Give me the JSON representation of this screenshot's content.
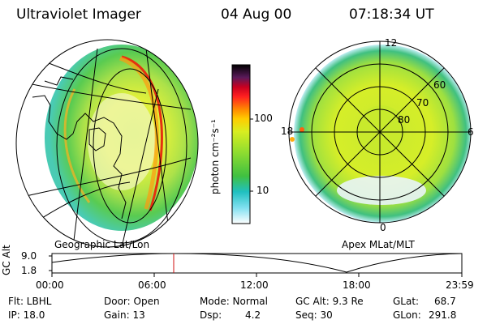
{
  "header": {
    "instrument": "Ultraviolet Imager",
    "date": "04 Aug 00",
    "time": "07:18:34 UT"
  },
  "panels": {
    "geo_label": "Geographic Lat/Lon",
    "apex_label": "Apex MLat/MLT"
  },
  "colorbar": {
    "unit_label": "photon cm⁻²s⁻¹",
    "ticks": [
      "100",
      "10"
    ],
    "colors": [
      "#000000",
      "#2b0a3a",
      "#5a1a5a",
      "#8a1a2a",
      "#c80020",
      "#ff2020",
      "#ff8800",
      "#ffcc00",
      "#d8ee20",
      "#90dd30",
      "#40c040",
      "#20c0c0",
      "#80e0f0",
      "#ffffff"
    ]
  },
  "apex_plot": {
    "mlt_labels": [
      "12",
      "18",
      "6",
      "0"
    ],
    "mlat_labels": [
      "60",
      "70",
      "80"
    ]
  },
  "altitude": {
    "axis_label": "GC Alt",
    "y_ticks": [
      "9.0",
      "1.8"
    ],
    "x_ticks": [
      "00:00",
      "06:00",
      "12:00",
      "18:00",
      "23:59"
    ]
  },
  "status": {
    "flt": "Flt: LBHL",
    "ip": "IP: 18.0",
    "door": "Door: Open",
    "gain": "Gain: 13",
    "mode": "Mode: Normal",
    "dsp_label": "Dsp:",
    "dsp_value": "4.2",
    "gc_alt": "GC Alt: 9.3 Re",
    "seq": "Seq: 30",
    "glat_label": "GLat:",
    "glat_value": "68.7",
    "glon_label": "GLon:",
    "glon_value": "291.8"
  }
}
